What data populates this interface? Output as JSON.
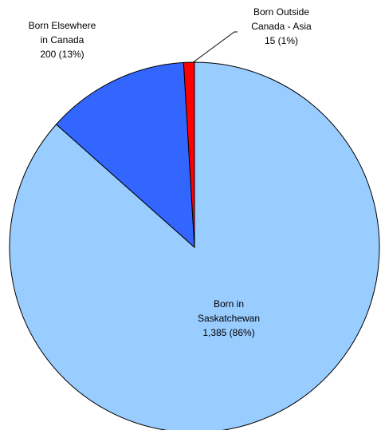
{
  "chart_data": {
    "type": "pie",
    "categories": [
      "Born in\nSaskatchewan",
      "Born Elsewhere\nin Canada",
      "Born Outside\nCanada - Asia"
    ],
    "values": [
      1385,
      200,
      15
    ],
    "value_labels": [
      "1,385 (86%)",
      "200 (13%)",
      "15 (1%)"
    ],
    "colors": [
      "#99ccff",
      "#3366ff",
      "#ff0000"
    ]
  }
}
